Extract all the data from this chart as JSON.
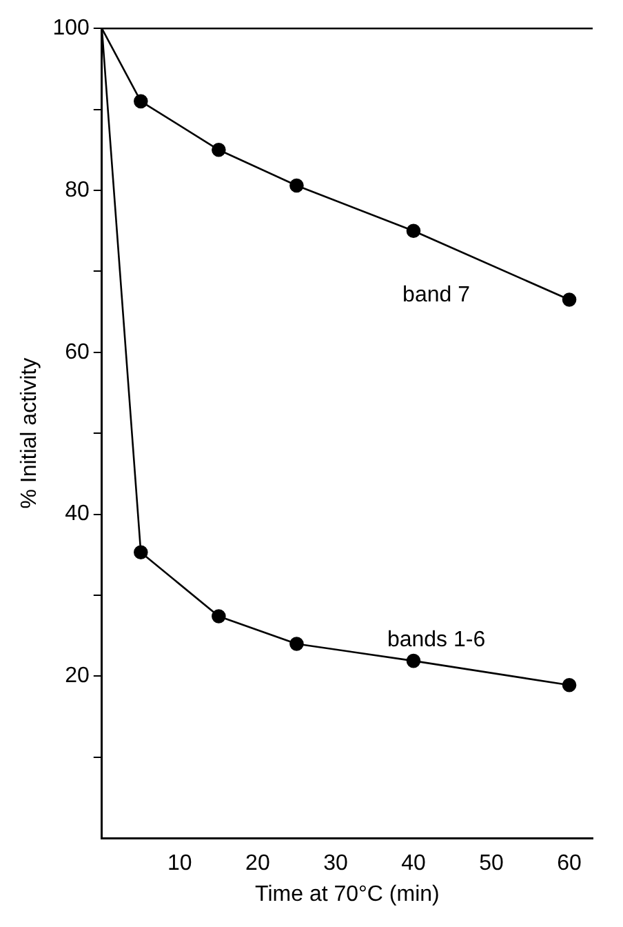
{
  "chart_data": {
    "type": "line",
    "xlabel": "Time at 70°C (min)",
    "ylabel": "% Initial activity",
    "xlim": [
      0,
      63
    ],
    "xticks": [
      10,
      20,
      30,
      40,
      50,
      60
    ],
    "ylim": [
      0,
      100
    ],
    "yticks": [
      {
        "value": 10,
        "label": null
      },
      20,
      {
        "value": 30,
        "label": null
      },
      40,
      {
        "value": 50,
        "label": null
      },
      60,
      {
        "value": 70,
        "label": null
      },
      80,
      {
        "value": 90,
        "label": null
      },
      100
    ],
    "series": [
      {
        "name": "band 7",
        "color": "#000000",
        "x": [
          0,
          5,
          15,
          25,
          40,
          60
        ],
        "values": [
          100,
          91,
          85,
          80.6,
          75,
          66.5
        ]
      },
      {
        "name": "bands 1-6",
        "color": "#000000",
        "x": [
          0,
          5,
          15,
          25,
          40,
          60
        ],
        "values": [
          100,
          35.3,
          27.4,
          24,
          21.9,
          18.9
        ]
      }
    ],
    "ref_lines": [
      {
        "axis": "y",
        "value": 100
      }
    ],
    "marker": "circle",
    "line_style": "solid",
    "grid": false,
    "legend": false
  }
}
